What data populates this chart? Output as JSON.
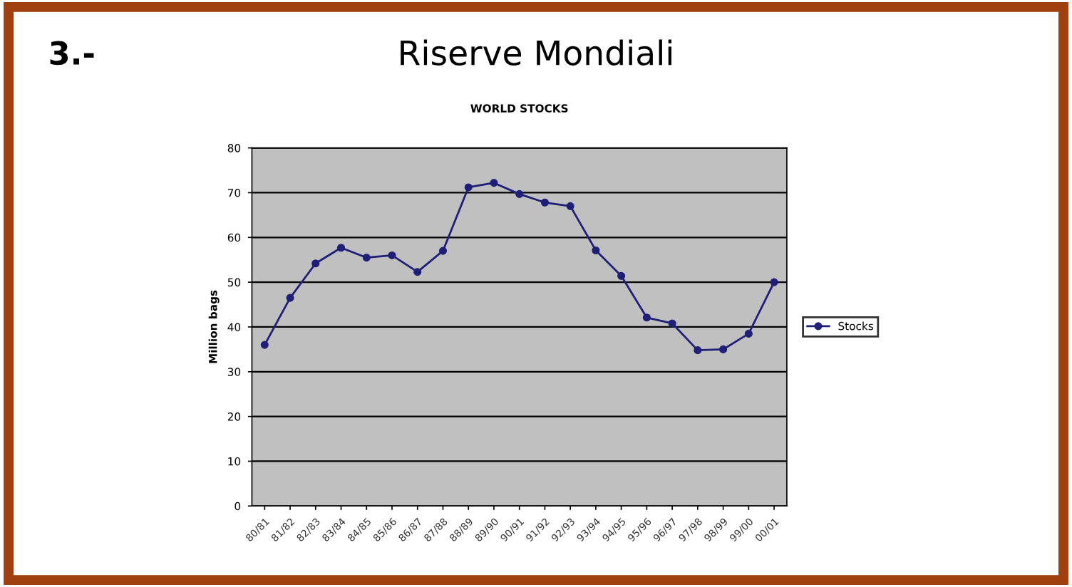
{
  "chart_data": {
    "type": "line",
    "title": "Riserve Mondiali",
    "subtitle": "WORLD STOCKS",
    "ylabel": "Million bags",
    "annotations": [
      "3.-"
    ],
    "categories": [
      "80/81",
      "81/82",
      "82/83",
      "83/84",
      "84/85",
      "85/86",
      "86/87",
      "87/88",
      "88/89",
      "89/90",
      "90/91",
      "91/92",
      "92/93",
      "93/94",
      "94/95",
      "95/96",
      "96/97",
      "97/98",
      "98/99",
      "99/00",
      "00/01"
    ],
    "series": [
      {
        "name": "Stocks",
        "color": "#1f1f77",
        "values": [
          36,
          46.5,
          54.2,
          57.7,
          55.5,
          56,
          52.3,
          57,
          71.2,
          72.2,
          69.7,
          67.8,
          67,
          57.1,
          51.4,
          42.1,
          40.8,
          34.8,
          35,
          38.5,
          50
        ]
      }
    ],
    "ylim": [
      0,
      80
    ],
    "yticks": [
      0,
      10,
      20,
      30,
      40,
      50,
      60,
      70,
      80
    ],
    "grid": "y",
    "legend": "right",
    "marker": "circle",
    "line_style": "solid"
  }
}
